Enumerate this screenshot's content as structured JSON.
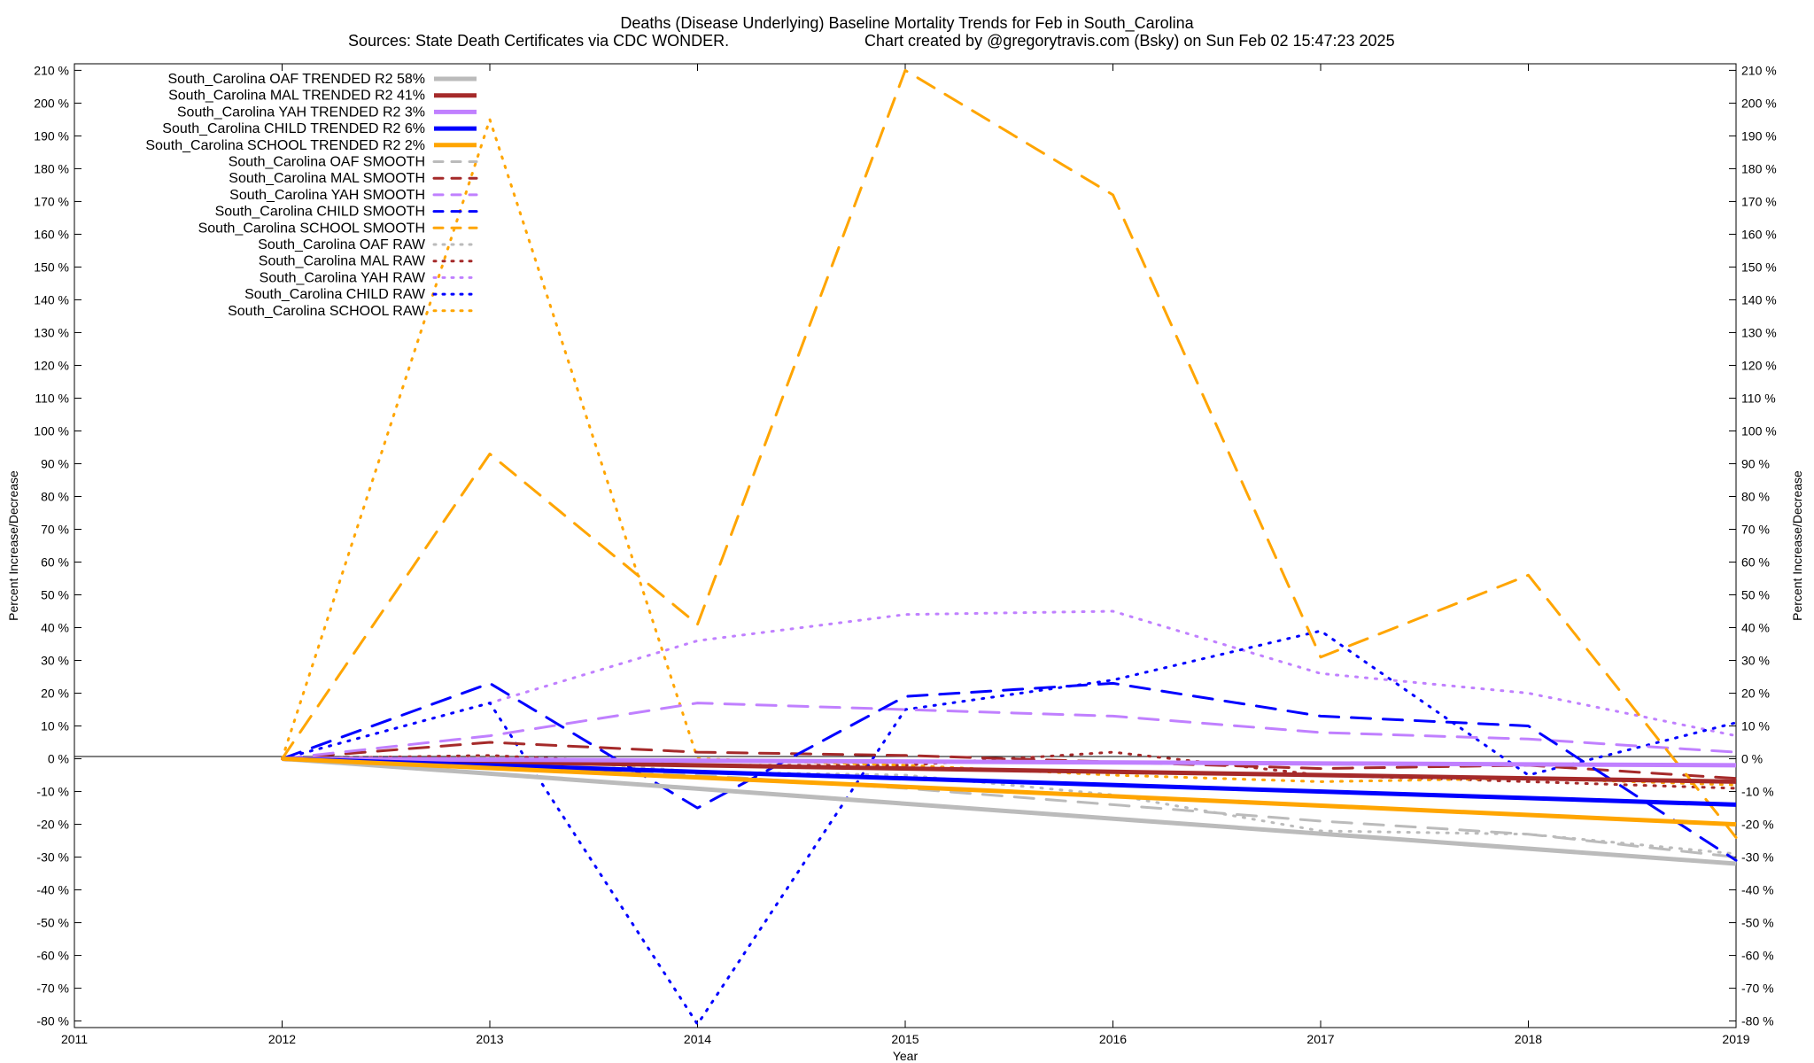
{
  "chart_data": {
    "type": "line",
    "title": "Deaths (Disease Underlying)  Baseline Mortality Trends for Feb in South_Carolina",
    "subtitle_left": "Sources: State Death Certificates via CDC WONDER.",
    "subtitle_right": "Chart created by @gregorytravis.com (Bsky) on Sun Feb 02 15:47:23 2025",
    "xlabel": "Year",
    "ylabel_left": "Percent Increase/Decrease",
    "ylabel_right": "Percent Increase/Decrease",
    "xlim": [
      2011,
      2019
    ],
    "ylim": [
      -82,
      212
    ],
    "x_ticks": [
      "2011",
      "2012",
      "2013",
      "2014",
      "2015",
      "2016",
      "2017",
      "2018",
      "2019"
    ],
    "y_ticks_left": [
      "210 %",
      "200 %",
      "190 %",
      "180 %",
      "170 %",
      "160 %",
      "150 %",
      "140 %",
      "130 %",
      "120 %",
      "110 %",
      "100 %",
      "90 %",
      "80 %",
      "70 %",
      "60 %",
      "50 %",
      "40 %",
      "30 %",
      "20 %",
      "10 %",
      "0 %",
      "-10 %",
      "-20 %",
      "-30 %",
      "-40 %",
      "-50 %",
      "-60 %",
      "-70 %",
      "-80 %"
    ],
    "y_ticks_right": [
      "210 %",
      "200 %",
      "190 %",
      "180 %",
      "170 %",
      "160 %",
      "150 %",
      "140 %",
      "130 %",
      "120 %",
      "110 %",
      "100 %",
      "90 %",
      "80 %",
      "70 %",
      "60 %",
      "50 %",
      "40 %",
      "30 %",
      "20 %",
      "10 %",
      "0 %",
      "-10 %",
      "-20 %",
      "-30 %",
      "-40 %",
      "-50 %",
      "-60 %",
      "-70 %",
      "-80 %"
    ],
    "legend_placement": "top-left",
    "grid": false,
    "series": [
      {
        "name": "South_Carolina OAF TRENDED R2  58%",
        "color": "#bbbbbb",
        "style": "solid",
        "x": [
          2012,
          2019
        ],
        "y": [
          0,
          -32
        ]
      },
      {
        "name": "South_Carolina MAL TRENDED R2  41%",
        "color": "#a52a2a",
        "style": "solid",
        "x": [
          2012,
          2019
        ],
        "y": [
          0,
          -7
        ]
      },
      {
        "name": "South_Carolina YAH TRENDED R2   3%",
        "color": "#c080ff",
        "style": "solid",
        "x": [
          2012,
          2019
        ],
        "y": [
          0,
          -2
        ]
      },
      {
        "name": "South_Carolina CHILD TRENDED R2   6%",
        "color": "#0000ff",
        "style": "solid",
        "x": [
          2012,
          2019
        ],
        "y": [
          0,
          -14
        ]
      },
      {
        "name": "South_Carolina SCHOOL TRENDED R2   2%",
        "color": "#ffa500",
        "style": "solid",
        "x": [
          2012,
          2019
        ],
        "y": [
          0,
          -20
        ]
      },
      {
        "name": "South_Carolina OAF SMOOTH",
        "color": "#bbbbbb",
        "style": "dashed",
        "x": [
          2012,
          2013,
          2014,
          2015,
          2016,
          2017,
          2018,
          2019
        ],
        "y": [
          0,
          -2,
          -5,
          -9,
          -14,
          -19,
          -23,
          -30
        ]
      },
      {
        "name": "South_Carolina MAL SMOOTH",
        "color": "#a52a2a",
        "style": "dashed",
        "x": [
          2012,
          2013,
          2014,
          2015,
          2016,
          2017,
          2018,
          2019
        ],
        "y": [
          0,
          5,
          2,
          1,
          -1,
          -3,
          -2,
          -6
        ]
      },
      {
        "name": "South_Carolina YAH SMOOTH",
        "color": "#c080ff",
        "style": "dashed",
        "x": [
          2012,
          2013,
          2014,
          2015,
          2016,
          2017,
          2018,
          2019
        ],
        "y": [
          0,
          7,
          17,
          15,
          13,
          8,
          6,
          2
        ]
      },
      {
        "name": "South_Carolina CHILD SMOOTH",
        "color": "#0000ff",
        "style": "dashed",
        "x": [
          2012,
          2013,
          2014,
          2015,
          2016,
          2017,
          2018,
          2019
        ],
        "y": [
          0,
          23,
          -15,
          19,
          23,
          13,
          10,
          -31
        ]
      },
      {
        "name": "South_Carolina SCHOOL SMOOTH",
        "color": "#ffa500",
        "style": "dashed",
        "x": [
          2012,
          2013,
          2014,
          2015,
          2016,
          2017,
          2018,
          2019
        ],
        "y": [
          0,
          93,
          41,
          210,
          172,
          31,
          56,
          -24
        ]
      },
      {
        "name": "South_Carolina OAF RAW",
        "color": "#bbbbbb",
        "style": "dotted",
        "x": [
          2012,
          2013,
          2014,
          2015,
          2016,
          2017,
          2018,
          2019
        ],
        "y": [
          0,
          1,
          -4,
          -5,
          -11,
          -22,
          -23,
          -29
        ]
      },
      {
        "name": "South_Carolina MAL RAW",
        "color": "#a52a2a",
        "style": "dotted",
        "x": [
          2012,
          2013,
          2014,
          2015,
          2016,
          2017,
          2018,
          2019
        ],
        "y": [
          0,
          1,
          -2,
          -2,
          2,
          -5,
          -7,
          -9
        ]
      },
      {
        "name": "South_Carolina YAH RAW",
        "color": "#c080ff",
        "style": "dotted",
        "x": [
          2012,
          2013,
          2014,
          2015,
          2016,
          2017,
          2018,
          2019
        ],
        "y": [
          0,
          17,
          36,
          44,
          45,
          26,
          20,
          7
        ]
      },
      {
        "name": "South_Carolina CHILD RAW",
        "color": "#0000ff",
        "style": "dotted",
        "x": [
          2012,
          2013,
          2014,
          2015,
          2016,
          2017,
          2018,
          2019
        ],
        "y": [
          0,
          17,
          -81,
          15,
          24,
          39,
          -5,
          11
        ]
      },
      {
        "name": "South_Carolina SCHOOL RAW",
        "color": "#ffa500",
        "style": "dotted",
        "x": [
          2012,
          2013,
          2014,
          2015,
          2016,
          2017,
          2018,
          2019
        ],
        "y": [
          0,
          195,
          0,
          -2,
          -5,
          -7,
          -6,
          -8
        ]
      }
    ]
  }
}
